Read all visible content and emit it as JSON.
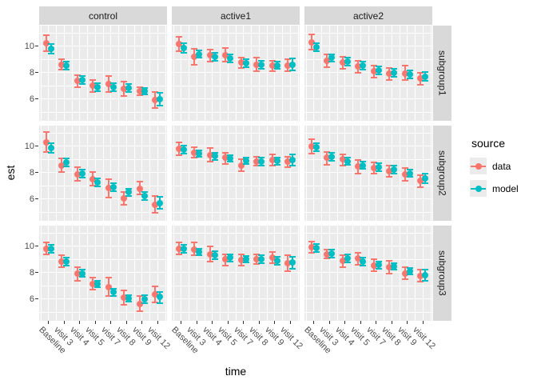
{
  "chart_data": {
    "type": "scatter",
    "subtype": "pointrange-errorbar-faceted",
    "xlabel": "time",
    "ylabel": "est",
    "x_categories": [
      "Baseline",
      "visit 3",
      "visit 4",
      "visit 5",
      "visit 7",
      "visit 8",
      "visit 9",
      "visit 12"
    ],
    "facet_cols": [
      "control",
      "active1",
      "active2"
    ],
    "facet_rows": [
      "subgroup1",
      "subgroup2",
      "subgroup3"
    ],
    "y_ticks": [
      10,
      8,
      6
    ],
    "ylim": [
      4.35,
      11.55
    ],
    "grid": "on",
    "legend": {
      "title": "source",
      "position": "right",
      "items": [
        {
          "name": "data",
          "label": "data",
          "color": "#F8766D"
        },
        {
          "name": "model",
          "label": "model",
          "color": "#00BFC4"
        }
      ]
    },
    "panels": [
      {
        "facet_col": "control",
        "facet_row": "subgroup1",
        "col": 0,
        "row": 0,
        "series": [
          {
            "name": "data",
            "est": [
              10.2,
              8.6,
              7.35,
              7.0,
              7.15,
              6.75,
              6.6,
              5.9
            ],
            "lo": [
              9.6,
              8.2,
              6.9,
              6.55,
              6.55,
              6.2,
              6.3,
              5.3
            ],
            "hi": [
              10.8,
              9.0,
              7.8,
              7.45,
              7.75,
              7.3,
              6.9,
              6.5
            ]
          },
          {
            "name": "model",
            "est": [
              9.8,
              8.5,
              7.45,
              6.9,
              6.9,
              6.85,
              6.6,
              6.0
            ],
            "lo": [
              9.45,
              8.2,
              7.15,
              6.6,
              6.6,
              6.55,
              6.35,
              5.5
            ],
            "hi": [
              10.15,
              8.8,
              7.75,
              7.2,
              7.2,
              7.15,
              6.85,
              6.45
            ]
          }
        ]
      },
      {
        "facet_col": "active1",
        "facet_row": "subgroup1",
        "col": 1,
        "row": 0,
        "series": [
          {
            "name": "data",
            "est": [
              10.15,
              9.2,
              9.3,
              9.3,
              8.75,
              8.6,
              8.5,
              8.55
            ],
            "lo": [
              9.6,
              8.6,
              8.85,
              8.8,
              8.35,
              8.1,
              8.1,
              8.1
            ],
            "hi": [
              10.7,
              9.8,
              9.75,
              9.85,
              9.15,
              9.1,
              8.9,
              9.0
            ]
          },
          {
            "name": "model",
            "est": [
              9.85,
              9.4,
              9.2,
              9.05,
              8.7,
              8.6,
              8.55,
              8.6
            ],
            "lo": [
              9.5,
              9.1,
              8.9,
              8.75,
              8.4,
              8.3,
              8.3,
              8.15
            ],
            "hi": [
              10.2,
              9.7,
              9.5,
              9.35,
              9.0,
              8.9,
              8.85,
              9.05
            ]
          }
        ]
      },
      {
        "facet_col": "active2",
        "facet_row": "subgroup1",
        "col": 2,
        "row": 0,
        "series": [
          {
            "name": "data",
            "est": [
              10.3,
              8.9,
              8.75,
              8.45,
              8.1,
              7.9,
              7.95,
              7.55
            ],
            "lo": [
              9.75,
              8.4,
              8.3,
              8.0,
              7.6,
              7.45,
              7.45,
              7.05
            ],
            "hi": [
              10.9,
              9.4,
              9.2,
              8.9,
              8.55,
              8.35,
              8.5,
              8.0
            ]
          },
          {
            "name": "model",
            "est": [
              9.9,
              9.1,
              8.8,
              8.5,
              8.15,
              8.0,
              7.85,
              7.7
            ],
            "lo": [
              9.6,
              8.8,
              8.5,
              8.2,
              7.85,
              7.7,
              7.55,
              7.35
            ],
            "hi": [
              10.2,
              9.4,
              9.1,
              8.8,
              8.45,
              8.3,
              8.15,
              8.05
            ]
          }
        ]
      },
      {
        "facet_col": "control",
        "facet_row": "subgroup2",
        "col": 0,
        "row": 1,
        "series": [
          {
            "name": "data",
            "est": [
              10.3,
              8.55,
              7.85,
              7.5,
              6.85,
              6.05,
              6.8,
              5.55
            ],
            "lo": [
              9.55,
              8.05,
              7.35,
              7.0,
              6.1,
              5.55,
              6.35,
              4.95
            ],
            "hi": [
              11.05,
              9.05,
              8.4,
              8.05,
              7.5,
              6.55,
              7.3,
              6.2
            ]
          },
          {
            "name": "model",
            "est": [
              9.85,
              8.75,
              7.9,
              7.25,
              6.9,
              6.5,
              6.25,
              5.7
            ],
            "lo": [
              9.5,
              8.45,
              7.6,
              6.95,
              6.6,
              6.2,
              5.95,
              5.25
            ],
            "hi": [
              10.2,
              9.05,
              8.2,
              7.55,
              7.2,
              6.8,
              6.55,
              6.15
            ]
          }
        ]
      },
      {
        "facet_col": "active1",
        "facet_row": "subgroup2",
        "col": 1,
        "row": 1,
        "series": [
          {
            "name": "data",
            "est": [
              9.8,
              9.5,
              9.3,
              9.1,
              8.55,
              8.85,
              8.95,
              8.8
            ],
            "lo": [
              9.3,
              9.1,
              8.8,
              8.65,
              8.1,
              8.5,
              8.55,
              8.4
            ],
            "hi": [
              10.3,
              9.9,
              9.85,
              9.5,
              9.0,
              9.2,
              9.4,
              9.2
            ]
          },
          {
            "name": "model",
            "est": [
              9.75,
              9.45,
              9.25,
              9.05,
              8.9,
              8.85,
              8.9,
              8.95
            ],
            "lo": [
              9.45,
              9.2,
              8.95,
              8.8,
              8.65,
              8.55,
              8.6,
              8.5
            ],
            "hi": [
              10.05,
              9.7,
              9.5,
              9.3,
              9.1,
              9.1,
              9.15,
              9.4
            ]
          }
        ]
      },
      {
        "facet_col": "active2",
        "facet_row": "subgroup2",
        "col": 2,
        "row": 1,
        "series": [
          {
            "name": "data",
            "est": [
              10.0,
              9.1,
              9.0,
              8.45,
              8.35,
              8.1,
              7.85,
              7.35
            ],
            "lo": [
              9.45,
              8.6,
              8.55,
              7.95,
              7.95,
              7.65,
              7.4,
              6.9
            ],
            "hi": [
              10.55,
              9.55,
              9.4,
              8.95,
              8.75,
              8.55,
              8.35,
              7.8
            ]
          },
          {
            "name": "model",
            "est": [
              9.9,
              9.2,
              8.85,
              8.55,
              8.4,
              8.2,
              7.95,
              7.55
            ],
            "lo": [
              9.6,
              8.9,
              8.6,
              8.3,
              8.1,
              7.9,
              7.65,
              7.2
            ],
            "hi": [
              10.2,
              9.5,
              9.15,
              8.8,
              8.7,
              8.5,
              8.25,
              7.9
            ]
          }
        ]
      },
      {
        "facet_col": "control",
        "facet_row": "subgroup3",
        "col": 0,
        "row": 2,
        "series": [
          {
            "name": "data",
            "est": [
              9.8,
              8.85,
              7.9,
              7.15,
              6.9,
              6.1,
              5.65,
              6.35
            ],
            "lo": [
              9.4,
              8.4,
              7.35,
              6.7,
              6.2,
              5.55,
              5.05,
              5.75
            ],
            "hi": [
              10.3,
              9.3,
              8.4,
              7.6,
              7.6,
              6.65,
              6.2,
              6.95
            ]
          },
          {
            "name": "model",
            "est": [
              9.8,
              8.8,
              7.95,
              7.15,
              6.5,
              6.05,
              6.0,
              6.15
            ],
            "lo": [
              9.5,
              8.5,
              7.65,
              6.9,
              6.2,
              5.8,
              5.7,
              5.7
            ],
            "hi": [
              10.1,
              9.1,
              8.25,
              7.4,
              6.8,
              6.3,
              6.3,
              6.55
            ]
          }
        ]
      },
      {
        "facet_col": "active1",
        "facet_row": "subgroup3",
        "col": 1,
        "row": 2,
        "series": [
          {
            "name": "data",
            "est": [
              9.8,
              9.75,
              9.4,
              9.0,
              8.95,
              9.0,
              9.1,
              8.7
            ],
            "lo": [
              9.35,
              9.3,
              8.85,
              8.55,
              8.5,
              8.65,
              8.7,
              8.1
            ],
            "hi": [
              10.3,
              10.25,
              9.95,
              9.4,
              9.4,
              9.4,
              9.55,
              9.3
            ]
          },
          {
            "name": "model",
            "est": [
              9.8,
              9.55,
              9.3,
              9.1,
              9.0,
              9.0,
              8.9,
              8.75
            ],
            "lo": [
              9.5,
              9.3,
              9.0,
              8.8,
              8.75,
              8.7,
              8.6,
              8.3
            ],
            "hi": [
              10.1,
              9.8,
              9.6,
              9.35,
              9.25,
              9.3,
              9.2,
              9.2
            ]
          }
        ]
      },
      {
        "facet_col": "active2",
        "facet_row": "subgroup3",
        "col": 2,
        "row": 2,
        "series": [
          {
            "name": "data",
            "est": [
              9.9,
              9.4,
              8.9,
              9.05,
              8.55,
              8.4,
              7.95,
              7.75
            ],
            "lo": [
              9.5,
              9.05,
              8.4,
              8.6,
              8.1,
              7.9,
              7.5,
              7.3
            ],
            "hi": [
              10.35,
              9.75,
              9.3,
              9.5,
              9.0,
              8.9,
              8.4,
              8.25
            ]
          },
          {
            "name": "model",
            "est": [
              9.85,
              9.45,
              9.05,
              8.85,
              8.6,
              8.45,
              8.1,
              7.8
            ],
            "lo": [
              9.55,
              9.15,
              8.75,
              8.55,
              8.3,
              8.2,
              7.85,
              7.4
            ],
            "hi": [
              10.15,
              9.75,
              9.35,
              9.15,
              8.85,
              8.7,
              8.35,
              8.2
            ]
          }
        ]
      }
    ]
  }
}
